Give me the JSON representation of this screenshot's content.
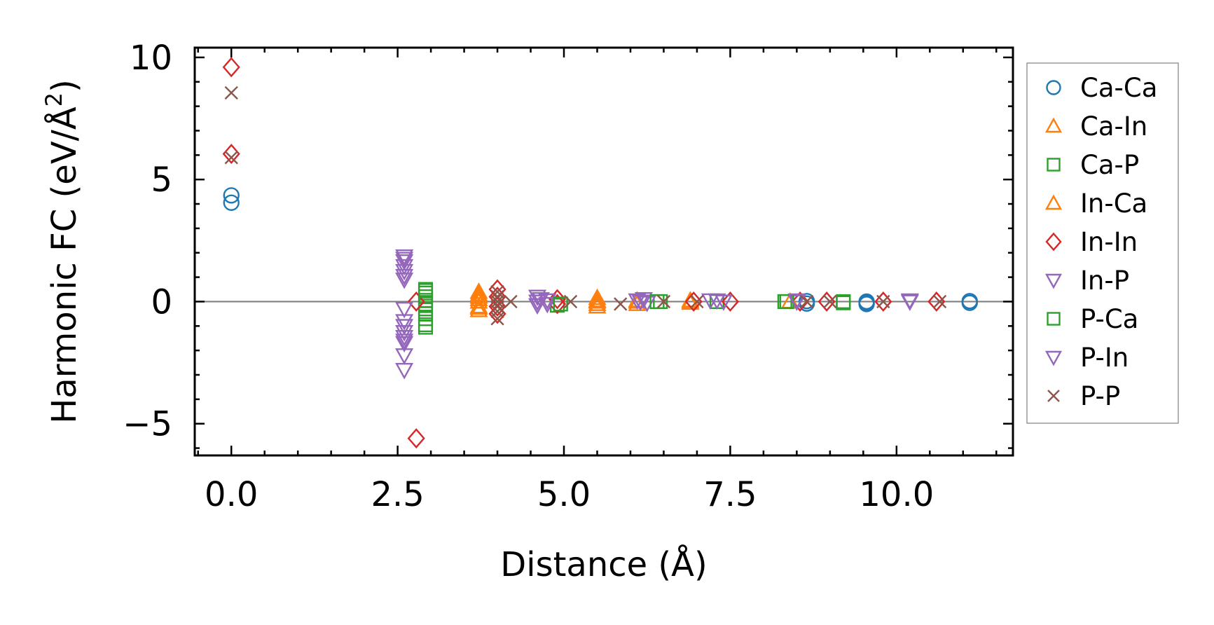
{
  "chart_data": {
    "type": "scatter",
    "xlabel": "Distance (Å)",
    "ylabel": "Harmonic FC (eV/Å²)",
    "ylabel_main": "Harmonic FC (eV/Å",
    "ylabel_sup": "2",
    "ylabel_tail": ")",
    "xlim": [
      -0.55,
      11.75
    ],
    "ylim": [
      -6.3,
      10.4
    ],
    "xticks": [
      0.0,
      2.5,
      5.0,
      7.5,
      10.0
    ],
    "xtick_labels": [
      "0.0",
      "2.5",
      "5.0",
      "7.5",
      "10.0"
    ],
    "yticks": [
      10,
      5,
      0,
      -5
    ],
    "ytick_labels": [
      "10",
      "5",
      "0",
      "−5"
    ],
    "x_minor_step": 0.5,
    "y_minor_step": 1,
    "reference_line_y": 0,
    "legend_position": "outside-right",
    "series": [
      {
        "name": "Ca-Ca",
        "marker": "circle",
        "color": "#1f77b4",
        "points": [
          [
            0,
            4.35
          ],
          [
            0,
            4.05
          ],
          [
            8.65,
            -0.08
          ],
          [
            8.65,
            0.02
          ],
          [
            9.55,
            -0.1
          ],
          [
            9.55,
            0.0
          ],
          [
            9.55,
            -0.05
          ],
          [
            11.1,
            -0.05
          ],
          [
            11.1,
            0.02
          ]
        ]
      },
      {
        "name": "Ca-In",
        "marker": "triangle-up",
        "color": "#ff7f0e",
        "points": [
          [
            3.72,
            0.4
          ],
          [
            3.72,
            0.2
          ],
          [
            3.72,
            0.0
          ],
          [
            3.72,
            -0.2
          ],
          [
            3.72,
            -0.35
          ],
          [
            3.72,
            0.1
          ],
          [
            5.5,
            0.15
          ],
          [
            5.5,
            0.0
          ],
          [
            5.5,
            -0.2
          ],
          [
            5.5,
            -0.1
          ],
          [
            6.1,
            0.05
          ],
          [
            6.1,
            -0.1
          ],
          [
            6.9,
            0.05
          ],
          [
            6.9,
            -0.05
          ],
          [
            8.4,
            0.0
          ]
        ]
      },
      {
        "name": "Ca-P",
        "marker": "square",
        "color": "#2ca02c",
        "points": [
          [
            2.92,
            0.5
          ],
          [
            2.92,
            0.35
          ],
          [
            2.92,
            0.2
          ],
          [
            2.92,
            0.05
          ],
          [
            2.92,
            -0.1
          ],
          [
            2.92,
            -0.3
          ],
          [
            2.92,
            -0.5
          ],
          [
            2.92,
            -0.7
          ],
          [
            2.92,
            -0.95
          ],
          [
            4.9,
            -0.15
          ],
          [
            6.45,
            0.0
          ],
          [
            7.3,
            0.0
          ],
          [
            8.32,
            0.0
          ],
          [
            9.2,
            -0.05
          ]
        ]
      },
      {
        "name": "In-Ca",
        "marker": "triangle-up",
        "color": "#ff7f0e",
        "points": [
          [
            3.72,
            0.3
          ],
          [
            3.72,
            -0.25
          ],
          [
            5.5,
            0.05
          ],
          [
            6.1,
            0.0
          ],
          [
            6.9,
            0.0
          ]
        ]
      },
      {
        "name": "In-In",
        "marker": "diamond",
        "color": "#d62728",
        "points": [
          [
            0,
            9.6
          ],
          [
            0,
            6.05
          ],
          [
            2.78,
            -5.6
          ],
          [
            2.78,
            0.0
          ],
          [
            4.0,
            0.5
          ],
          [
            4.0,
            0.2
          ],
          [
            4.0,
            -0.2
          ],
          [
            4.0,
            -0.5
          ],
          [
            4.9,
            0.1
          ],
          [
            4.9,
            -0.1
          ],
          [
            6.95,
            0.0
          ],
          [
            7.5,
            0.0
          ],
          [
            8.55,
            0.0
          ],
          [
            8.95,
            0.0
          ],
          [
            9.8,
            0.0
          ],
          [
            10.6,
            0.0
          ]
        ]
      },
      {
        "name": "In-P",
        "marker": "triangle-down",
        "color": "#9467bd",
        "points": [
          [
            2.6,
            1.85
          ],
          [
            2.6,
            1.65
          ],
          [
            2.6,
            1.45
          ],
          [
            2.6,
            1.25
          ],
          [
            2.6,
            1.05
          ],
          [
            2.6,
            0.9
          ],
          [
            2.6,
            -0.3
          ],
          [
            2.6,
            -0.8
          ],
          [
            2.6,
            -1.0
          ],
          [
            2.6,
            -1.25
          ],
          [
            2.6,
            -1.45
          ],
          [
            2.6,
            -1.7
          ],
          [
            2.6,
            -2.2
          ],
          [
            2.6,
            -2.8
          ],
          [
            4.6,
            0.2
          ],
          [
            4.6,
            0.0
          ],
          [
            4.6,
            -0.15
          ],
          [
            4.75,
            0.05
          ],
          [
            4.75,
            -0.1
          ],
          [
            6.1,
            0.05
          ],
          [
            6.2,
            0.1
          ],
          [
            6.25,
            -0.05
          ],
          [
            7.2,
            0.05
          ],
          [
            7.4,
            0.0
          ],
          [
            8.5,
            0.0
          ],
          [
            10.2,
            0.0
          ]
        ]
      },
      {
        "name": "P-Ca",
        "marker": "square",
        "color": "#2ca02c",
        "points": [
          [
            2.92,
            0.45
          ],
          [
            2.92,
            -1.05
          ],
          [
            4.95,
            -0.1
          ],
          [
            6.4,
            0.0
          ],
          [
            8.35,
            0.0
          ],
          [
            9.2,
            0.0
          ]
        ]
      },
      {
        "name": "P-In",
        "marker": "triangle-down",
        "color": "#9467bd",
        "points": [
          [
            2.6,
            1.75
          ],
          [
            2.6,
            -1.6
          ],
          [
            4.65,
            0.1
          ],
          [
            6.15,
            0.0
          ],
          [
            7.3,
            0.05
          ],
          [
            8.5,
            0.05
          ],
          [
            10.2,
            0.05
          ]
        ]
      },
      {
        "name": "P-P",
        "marker": "x",
        "color": "#8c564b",
        "points": [
          [
            0,
            8.55
          ],
          [
            0,
            5.9
          ],
          [
            4.0,
            0.4
          ],
          [
            4.0,
            0.2
          ],
          [
            4.0,
            0.0
          ],
          [
            4.0,
            -0.2
          ],
          [
            4.0,
            -0.4
          ],
          [
            4.0,
            -0.7
          ],
          [
            4.2,
            0.0
          ],
          [
            5.1,
            0.0
          ],
          [
            5.85,
            -0.1
          ],
          [
            6.5,
            0.0
          ],
          [
            7.0,
            0.0
          ],
          [
            8.65,
            0.0
          ],
          [
            9.0,
            0.0
          ],
          [
            9.8,
            0.0
          ],
          [
            10.65,
            0.0
          ]
        ]
      }
    ]
  }
}
